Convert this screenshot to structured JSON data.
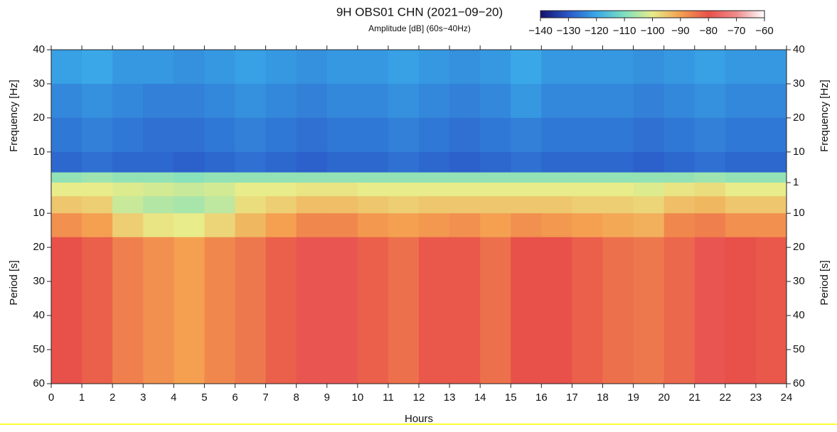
{
  "chart_data": {
    "type": "heatmap",
    "title": "9H OBS01 CHN (2021−09−20)",
    "subtitle": "Amplitude [dB] (60s−40Hz)",
    "xlabel": "Hours",
    "ylabel_hz": "Frequency [Hz]",
    "ylabel_s": "Period [s]",
    "xlim": [
      0,
      24
    ],
    "xticks": [
      0,
      1,
      2,
      3,
      4,
      5,
      6,
      7,
      8,
      9,
      10,
      11,
      12,
      13,
      14,
      15,
      16,
      17,
      18,
      19,
      20,
      21,
      22,
      23,
      24
    ],
    "hz_lim": [
      40,
      1
    ],
    "s_lim": [
      1,
      60
    ],
    "yticks_hz_left": [
      40,
      30,
      20,
      10
    ],
    "yticks_hz_right": [
      40,
      30,
      20,
      10,
      1
    ],
    "yticks_s": [
      10,
      20,
      30,
      40,
      50,
      60
    ],
    "hz_edges": [
      40,
      30,
      20,
      10,
      4,
      1
    ],
    "s_edges": [
      1,
      5,
      10,
      17,
      60
    ],
    "clim": [
      -140,
      -60
    ],
    "cticks": [
      {
        "value": -140,
        "label": "−140"
      },
      {
        "value": -130,
        "label": "−130"
      },
      {
        "value": -120,
        "label": "−120"
      },
      {
        "value": -110,
        "label": "−110"
      },
      {
        "value": -100,
        "label": "−100"
      },
      {
        "value": -90,
        "label": "−90"
      },
      {
        "value": -80,
        "label": "−80"
      },
      {
        "value": -70,
        "label": "−70"
      },
      {
        "value": -60,
        "label": "−60"
      }
    ],
    "colorscale": [
      "#14106e",
      "#2a58c8",
      "#3aa8e8",
      "#7ee0c0",
      "#e8ec8a",
      "#f4a050",
      "#e8504a",
      "#f08c8c",
      "#ffffff"
    ],
    "z": [
      [
        -121,
        -120,
        -122,
        -122,
        -123,
        -122,
        -121,
        -122,
        -123,
        -122,
        -122,
        -121,
        -122,
        -123,
        -122,
        -120,
        -122,
        -122,
        -122,
        -123,
        -122,
        -121,
        -122,
        -122
      ],
      [
        -124,
        -123,
        -124,
        -125,
        -125,
        -124,
        -123,
        -124,
        -125,
        -124,
        -124,
        -123,
        -124,
        -125,
        -124,
        -122,
        -124,
        -124,
        -124,
        -125,
        -124,
        -123,
        -124,
        -124
      ],
      [
        -126,
        -125,
        -126,
        -127,
        -127,
        -126,
        -125,
        -126,
        -127,
        -126,
        -126,
        -125,
        -126,
        -127,
        -126,
        -125,
        -126,
        -126,
        -126,
        -127,
        -126,
        -125,
        -126,
        -126
      ],
      [
        -128,
        -127,
        -128,
        -128,
        -129,
        -128,
        -127,
        -128,
        -129,
        -128,
        -128,
        -127,
        -128,
        -129,
        -128,
        -127,
        -128,
        -128,
        -128,
        -129,
        -128,
        -127,
        -128,
        -128
      ],
      [
        -108,
        -107,
        -108,
        -108,
        -109,
        -108,
        -108,
        -108,
        -108,
        -108,
        -108,
        -108,
        -108,
        -108,
        -108,
        -108,
        -108,
        -108,
        -108,
        -108,
        -108,
        -107,
        -108,
        -108
      ],
      [
        -100,
        -100,
        -101,
        -102,
        -103,
        -102,
        -100,
        -100,
        -99,
        -99,
        -100,
        -100,
        -100,
        -100,
        -100,
        -100,
        -100,
        -100,
        -100,
        -101,
        -99,
        -98,
        -100,
        -100
      ],
      [
        -95,
        -96,
        -103,
        -105,
        -106,
        -104,
        -98,
        -96,
        -94,
        -94,
        -95,
        -96,
        -95,
        -95,
        -95,
        -95,
        -95,
        -96,
        -96,
        -97,
        -94,
        -93,
        -95,
        -95
      ],
      [
        -88,
        -90,
        -96,
        -99,
        -100,
        -97,
        -93,
        -90,
        -87,
        -87,
        -89,
        -90,
        -89,
        -88,
        -90,
        -88,
        -89,
        -90,
        -91,
        -92,
        -87,
        -86,
        -88,
        -88
      ],
      [
        -80,
        -82,
        -86,
        -88,
        -90,
        -87,
        -85,
        -82,
        -79,
        -79,
        -82,
        -84,
        -81,
        -81,
        -84,
        -80,
        -80,
        -82,
        -84,
        -85,
        -83,
        -79,
        -80,
        -81
      ]
    ]
  }
}
